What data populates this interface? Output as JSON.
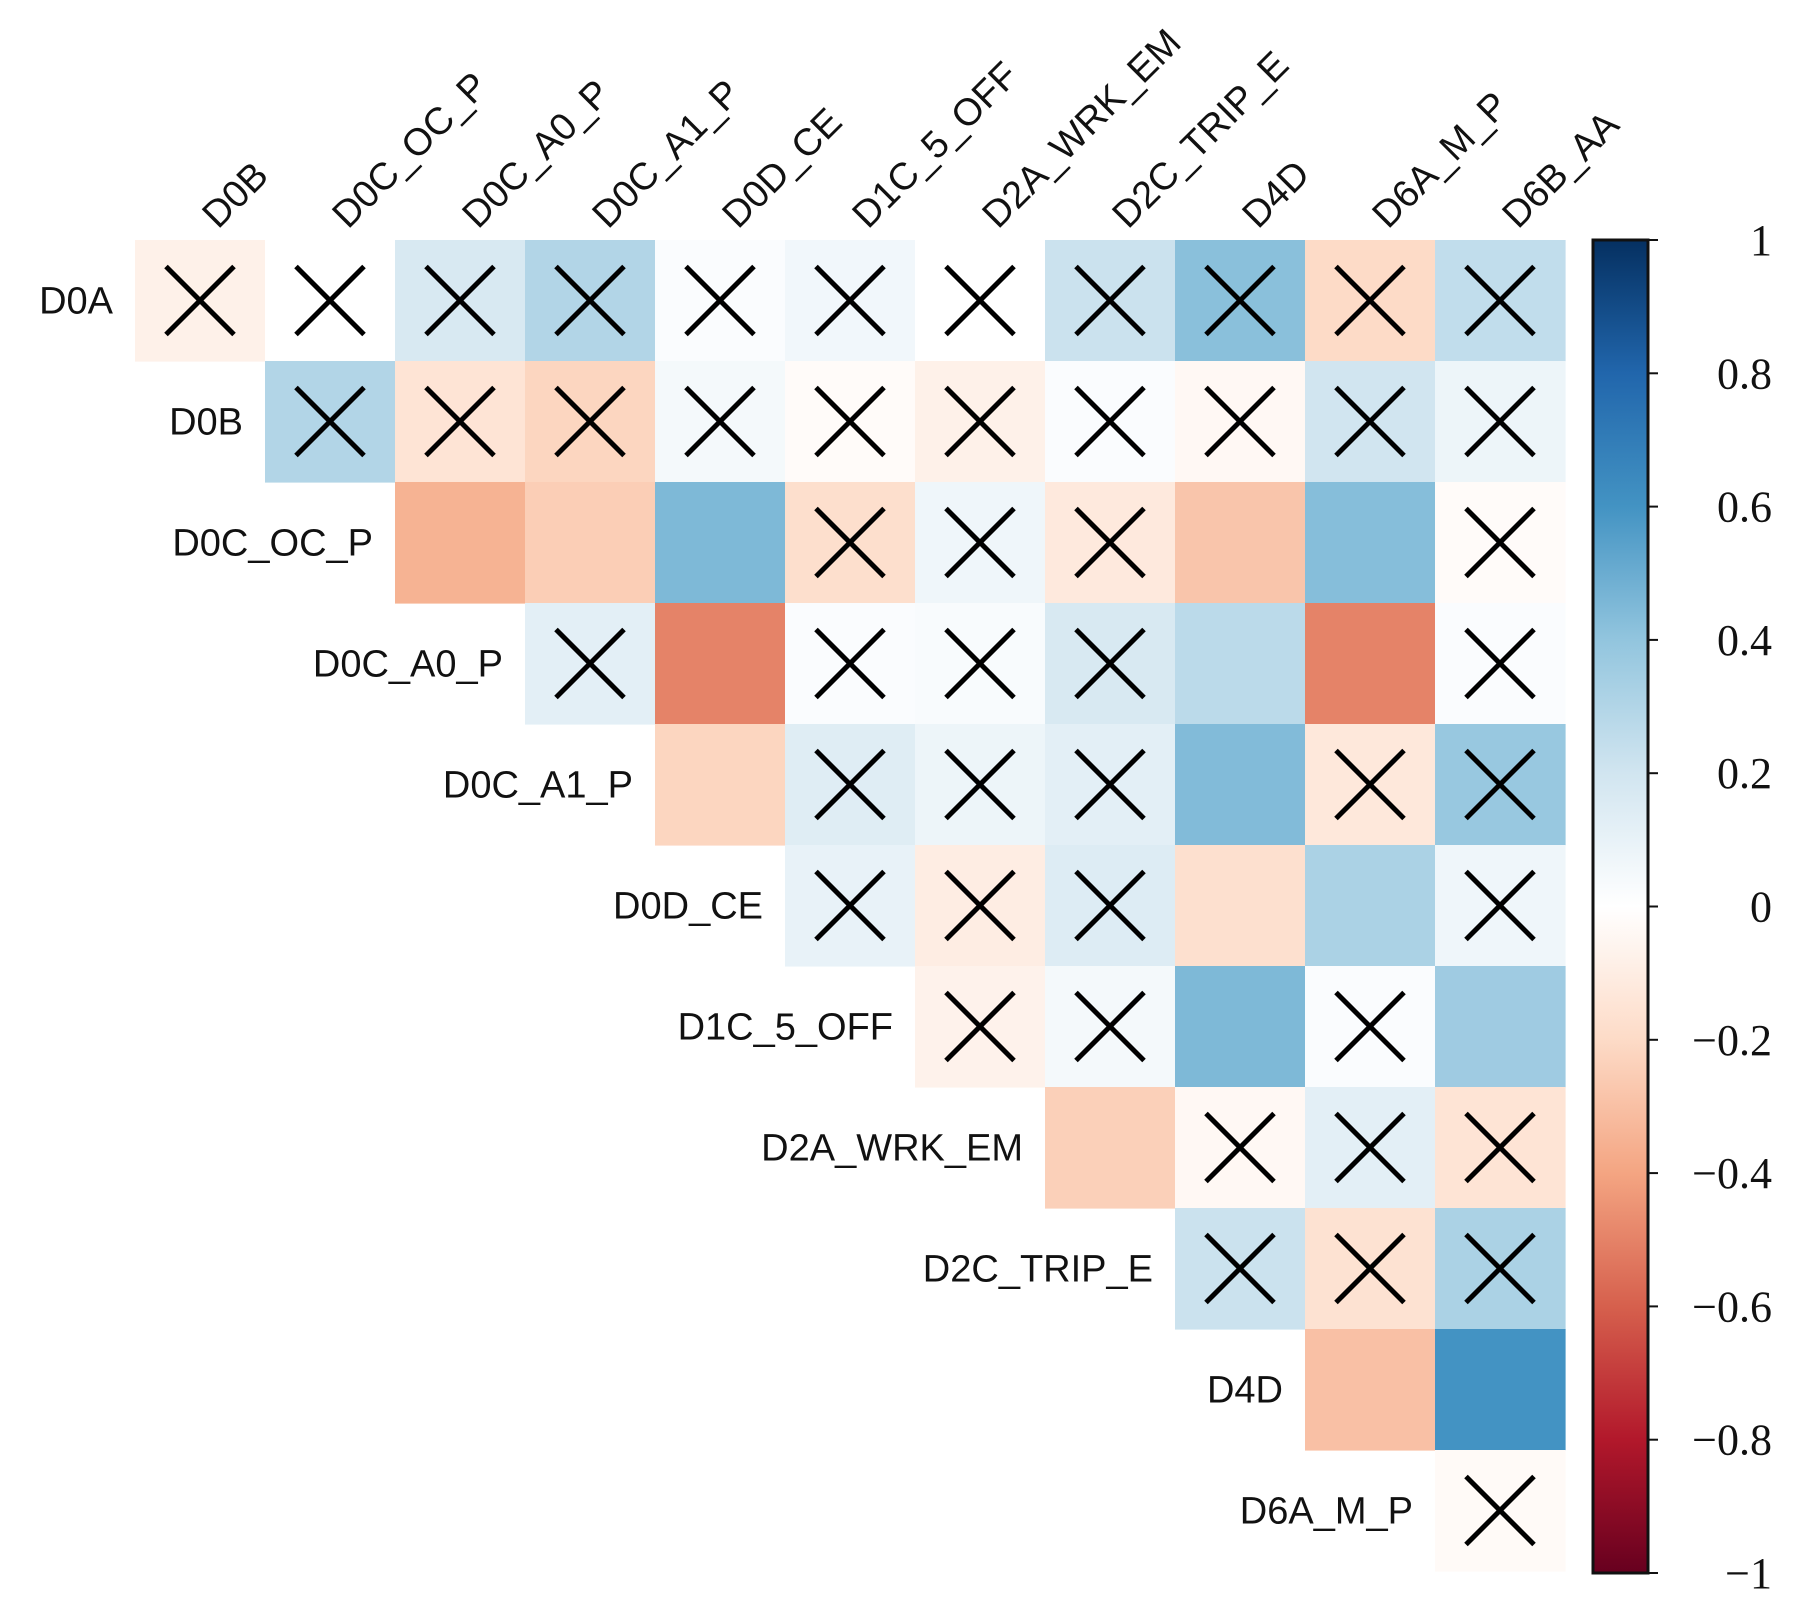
{
  "chart_data": {
    "type": "heatmap",
    "title": "",
    "columns": [
      "D0B",
      "D0C_OC_P",
      "D0C_A0_P",
      "D0C_A1_P",
      "D0D_CE",
      "D1C_5_OFF",
      "D2A_WRK_EM",
      "D2C_TRIP_E",
      "D4D",
      "D6A_M_P",
      "D6B_AA"
    ],
    "rows": [
      "D0A",
      "D0B",
      "D0C_OC_P",
      "D0C_A0_P",
      "D0C_A1_P",
      "D0D_CE",
      "D1C_5_OFF",
      "D2A_WRK_EM",
      "D2C_TRIP_E",
      "D4D",
      "D6A_M_P"
    ],
    "values": [
      [
        -0.08,
        0.0,
        0.17,
        0.3,
        0.02,
        0.06,
        0.0,
        0.22,
        0.42,
        -0.2,
        0.25
      ],
      [
        null,
        0.3,
        -0.15,
        -0.22,
        0.05,
        -0.02,
        -0.08,
        0.02,
        -0.04,
        0.2,
        0.08
      ],
      [
        null,
        null,
        -0.35,
        -0.25,
        0.45,
        -0.18,
        0.07,
        -0.12,
        -0.28,
        0.43,
        -0.02
      ],
      [
        null,
        null,
        null,
        0.12,
        -0.5,
        0.02,
        0.03,
        0.17,
        0.27,
        -0.5,
        0.02
      ],
      [
        null,
        null,
        null,
        null,
        -0.22,
        0.14,
        0.08,
        0.12,
        0.44,
        -0.13,
        0.38
      ],
      [
        null,
        null,
        null,
        null,
        null,
        0.1,
        -0.1,
        0.15,
        -0.17,
        0.32,
        0.07
      ],
      [
        null,
        null,
        null,
        null,
        null,
        null,
        -0.07,
        0.05,
        0.45,
        0.02,
        0.36
      ],
      [
        null,
        null,
        null,
        null,
        null,
        null,
        null,
        -0.24,
        -0.04,
        0.12,
        -0.15
      ],
      [
        null,
        null,
        null,
        null,
        null,
        null,
        null,
        null,
        0.22,
        -0.16,
        0.32
      ],
      [
        null,
        null,
        null,
        null,
        null,
        null,
        null,
        null,
        null,
        -0.3,
        0.6
      ],
      [
        null,
        null,
        null,
        null,
        null,
        null,
        null,
        null,
        null,
        null,
        -0.03
      ]
    ],
    "crossed": [
      [
        true,
        true,
        true,
        true,
        true,
        true,
        true,
        true,
        true,
        true,
        true
      ],
      [
        null,
        true,
        true,
        true,
        true,
        true,
        true,
        true,
        true,
        true,
        true
      ],
      [
        null,
        null,
        false,
        false,
        false,
        true,
        true,
        true,
        false,
        false,
        true
      ],
      [
        null,
        null,
        null,
        true,
        false,
        true,
        true,
        true,
        false,
        false,
        true
      ],
      [
        null,
        null,
        null,
        null,
        false,
        true,
        true,
        true,
        false,
        true,
        true
      ],
      [
        null,
        null,
        null,
        null,
        null,
        true,
        true,
        true,
        false,
        false,
        true
      ],
      [
        null,
        null,
        null,
        null,
        null,
        null,
        true,
        true,
        false,
        true,
        false
      ],
      [
        null,
        null,
        null,
        null,
        null,
        null,
        null,
        false,
        true,
        true,
        true
      ],
      [
        null,
        null,
        null,
        null,
        null,
        null,
        null,
        null,
        true,
        true,
        true
      ],
      [
        null,
        null,
        null,
        null,
        null,
        null,
        null,
        null,
        null,
        false,
        false
      ],
      [
        null,
        null,
        null,
        null,
        null,
        null,
        null,
        null,
        null,
        null,
        true
      ]
    ],
    "colorbar": {
      "range": [
        -1,
        1
      ],
      "ticks": [
        "1",
        "0.8",
        "0.6",
        "0.4",
        "0.2",
        "0",
        "−0.2",
        "−0.4",
        "−0.6",
        "−0.8",
        "−1"
      ],
      "tick_values": [
        1,
        0.8,
        0.6,
        0.4,
        0.2,
        0,
        -0.2,
        -0.4,
        -0.6,
        -0.8,
        -1
      ],
      "colors": [
        "#67001f",
        "#b2182b",
        "#d6604d",
        "#f4a582",
        "#fddbc7",
        "#ffffff",
        "#d1e5f0",
        "#92c5de",
        "#4393c3",
        "#2166ac",
        "#053061"
      ]
    }
  }
}
